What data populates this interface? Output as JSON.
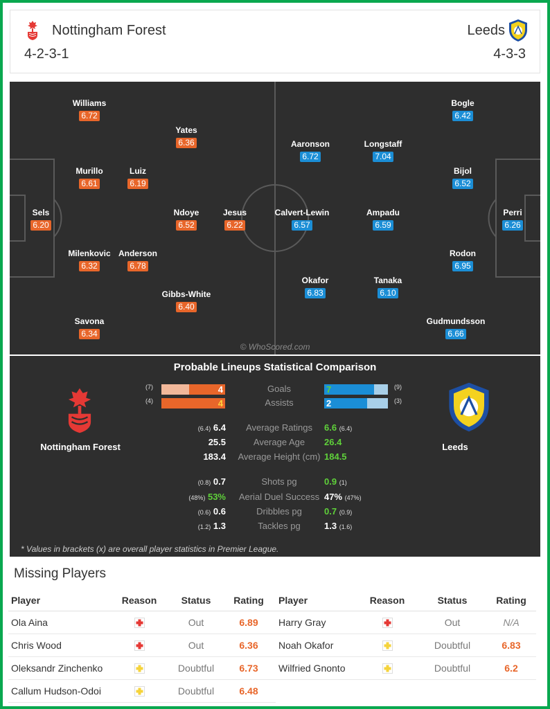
{
  "header": {
    "home": {
      "name": "Nottingham Forest",
      "formation": "4-2-3-1"
    },
    "away": {
      "name": "Leeds",
      "formation": "4-3-3"
    }
  },
  "colors": {
    "home": "#e8662a",
    "away": "#1b8ed6",
    "frame": "#0aa84f",
    "highlight": "#5fd13a"
  },
  "pitch": {
    "watermark": "© WhoScored.com",
    "home_players": [
      {
        "name": "Williams",
        "rating": "6.72"
      },
      {
        "name": "Yates",
        "rating": "6.36"
      },
      {
        "name": "Murillo",
        "rating": "6.61"
      },
      {
        "name": "Luiz",
        "rating": "6.19"
      },
      {
        "name": "Sels",
        "rating": "6.20"
      },
      {
        "name": "Ndoye",
        "rating": "6.52"
      },
      {
        "name": "Jesus",
        "rating": "6.22"
      },
      {
        "name": "Milenkovic",
        "rating": "6.32"
      },
      {
        "name": "Anderson",
        "rating": "6.78"
      },
      {
        "name": "Gibbs-White",
        "rating": "6.40"
      },
      {
        "name": "Savona",
        "rating": "6.34"
      }
    ],
    "away_players": [
      {
        "name": "Bogle",
        "rating": "6.42"
      },
      {
        "name": "Aaronson",
        "rating": "6.72"
      },
      {
        "name": "Longstaff",
        "rating": "7.04"
      },
      {
        "name": "Bijol",
        "rating": "6.52"
      },
      {
        "name": "Calvert-Lewin",
        "rating": "6.57"
      },
      {
        "name": "Ampadu",
        "rating": "6.59"
      },
      {
        "name": "Perri",
        "rating": "6.26"
      },
      {
        "name": "Rodon",
        "rating": "6.95"
      },
      {
        "name": "Okafor",
        "rating": "6.83"
      },
      {
        "name": "Tanaka",
        "rating": "6.10"
      },
      {
        "name": "Gudmundsson",
        "rating": "6.66"
      }
    ]
  },
  "comparison": {
    "title": "Probable Lineups Statistical Comparison",
    "home_name": "Nottingham Forest",
    "away_name": "Leeds",
    "bars": [
      {
        "label": "Goals",
        "home": "4",
        "home_overall": "(7)",
        "home_fraction": 0.57,
        "away": "7",
        "away_overall": "(9)",
        "away_fraction": 0.78
      },
      {
        "label": "Assists",
        "home": "4",
        "home_overall": "(4)",
        "home_fraction": 1.0,
        "away": "2",
        "away_overall": "(3)",
        "away_fraction": 0.67
      }
    ],
    "rows_a": [
      {
        "label": "Average Ratings",
        "home_br": "(6.4)",
        "home": "6.4",
        "away": "6.6",
        "away_br": "(6.4)",
        "winner": "away"
      },
      {
        "label": "Average Age",
        "home_br": "",
        "home": "25.5",
        "away": "26.4",
        "away_br": "",
        "winner": "away"
      },
      {
        "label": "Average Height (cm)",
        "home_br": "",
        "home": "183.4",
        "away": "184.5",
        "away_br": "",
        "winner": "away"
      }
    ],
    "rows_b": [
      {
        "label": "Shots pg",
        "home_br": "(0.8)",
        "home": "0.7",
        "away": "0.9",
        "away_br": "(1)",
        "winner": "away"
      },
      {
        "label": "Aerial Duel Success",
        "home_br": "(48%)",
        "home": "53%",
        "away": "47%",
        "away_br": "(47%)",
        "winner": "home"
      },
      {
        "label": "Dribbles pg",
        "home_br": "(0.6)",
        "home": "0.6",
        "away": "0.7",
        "away_br": "(0.9)",
        "winner": "away"
      },
      {
        "label": "Tackles pg",
        "home_br": "(1.2)",
        "home": "1.3",
        "away": "1.3",
        "away_br": "(1.6)",
        "winner": "none"
      }
    ],
    "footnote": "* Values in brackets (x) are overall player statistics in Premier League."
  },
  "missing": {
    "title": "Missing Players",
    "columns": [
      "Player",
      "Reason",
      "Status",
      "Rating"
    ],
    "home": [
      {
        "player": "Ola Aina",
        "reason": "injury-icon",
        "status": "Out",
        "rating": "6.89"
      },
      {
        "player": "Chris Wood",
        "reason": "injury-icon",
        "status": "Out",
        "rating": "6.36"
      },
      {
        "player": "Oleksandr Zinchenko",
        "reason": "doubtful-icon",
        "status": "Doubtful",
        "rating": "6.73"
      },
      {
        "player": "Callum Hudson-Odoi",
        "reason": "doubtful-icon",
        "status": "Doubtful",
        "rating": "6.48"
      }
    ],
    "away": [
      {
        "player": "Harry Gray",
        "reason": "injury-icon",
        "status": "Out",
        "rating": "N/A"
      },
      {
        "player": "Noah Okafor",
        "reason": "doubtful-icon",
        "status": "Doubtful",
        "rating": "6.83"
      },
      {
        "player": "Wilfried Gnonto",
        "reason": "doubtful-icon",
        "status": "Doubtful",
        "rating": "6.2"
      }
    ]
  }
}
